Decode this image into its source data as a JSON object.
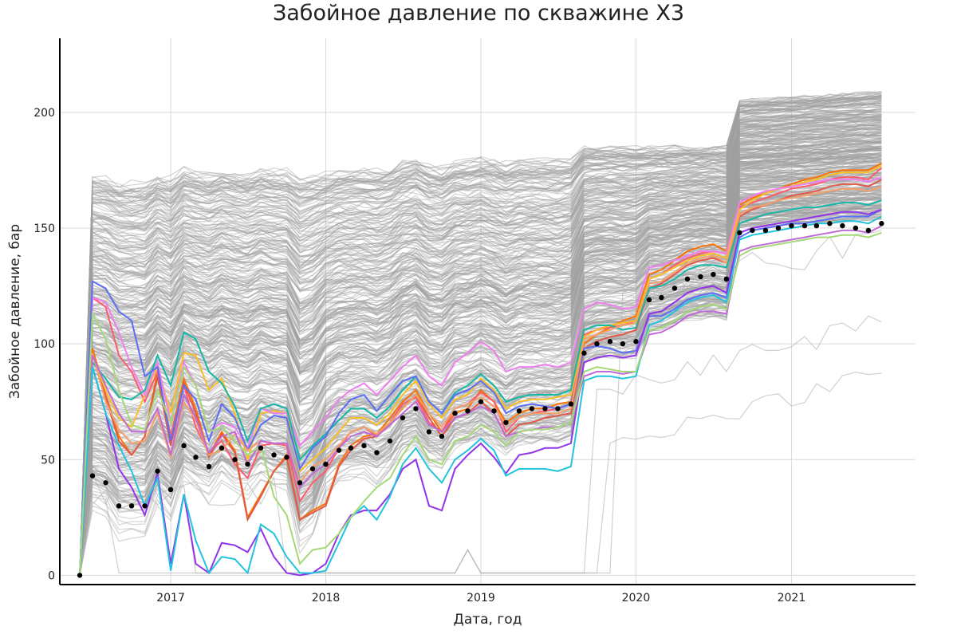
{
  "chart_data": {
    "type": "line",
    "title": "Забойное давление по скважине X3",
    "xlabel": "Дата, год",
    "ylabel": "Забойное давление, бар",
    "x_type": "date",
    "xlim": [
      "2016-04-15",
      "2021-10-20"
    ],
    "ylim": [
      -4,
      232
    ],
    "x_ticks": [
      "2017-01-01",
      "2018-01-01",
      "2019-01-01",
      "2020-01-01",
      "2021-01-01"
    ],
    "x_tick_labels": [
      "2017",
      "2018",
      "2019",
      "2020",
      "2021"
    ],
    "y_ticks": [
      0,
      50,
      100,
      150,
      200
    ],
    "grid": true,
    "legend": "none",
    "dates": [
      "2016-06-01",
      "2016-07-01",
      "2016-08-01",
      "2016-09-01",
      "2016-10-01",
      "2016-11-01",
      "2016-12-01",
      "2017-01-01",
      "2017-02-01",
      "2017-03-01",
      "2017-04-01",
      "2017-05-01",
      "2017-06-01",
      "2017-07-01",
      "2017-08-01",
      "2017-09-01",
      "2017-10-01",
      "2017-11-01",
      "2017-12-01",
      "2018-01-01",
      "2018-02-01",
      "2018-03-01",
      "2018-04-01",
      "2018-05-01",
      "2018-06-01",
      "2018-07-01",
      "2018-08-01",
      "2018-09-01",
      "2018-10-01",
      "2018-11-01",
      "2018-12-01",
      "2019-01-01",
      "2019-02-01",
      "2019-03-01",
      "2019-04-01",
      "2019-05-01",
      "2019-06-01",
      "2019-07-01",
      "2019-08-01",
      "2019-09-01",
      "2019-10-01",
      "2019-11-01",
      "2019-12-01",
      "2020-01-01",
      "2020-02-01",
      "2020-03-01",
      "2020-04-01",
      "2020-05-01",
      "2020-06-01",
      "2020-07-01",
      "2020-08-01",
      "2020-09-01",
      "2020-10-01",
      "2020-11-01",
      "2020-12-01",
      "2021-01-01",
      "2021-02-01",
      "2021-03-01",
      "2021-04-01",
      "2021-05-01",
      "2021-06-01",
      "2021-07-01",
      "2021-08-01"
    ],
    "observed": {
      "style": "black dots",
      "color": "#000000",
      "dates": [
        "2016-06-01",
        "2016-07-01",
        "2016-08-01",
        "2016-09-01",
        "2016-10-01",
        "2016-11-01",
        "2016-12-01",
        "2017-01-01",
        "2017-02-01",
        "2017-03-01",
        "2017-04-01",
        "2017-05-01",
        "2017-06-01",
        "2017-07-01",
        "2017-08-01",
        "2017-09-01",
        "2017-10-01",
        "2017-11-01",
        "2017-12-01",
        "2018-01-01",
        "2018-02-01",
        "2018-03-01",
        "2018-04-01",
        "2018-05-01",
        "2018-06-01",
        "2018-07-01",
        "2018-08-01",
        "2018-09-01",
        "2018-10-01",
        "2018-11-01",
        "2018-12-01",
        "2019-01-01",
        "2019-02-01",
        "2019-03-01",
        "2019-04-01",
        "2019-05-01",
        "2019-06-01",
        "2019-07-01",
        "2019-08-01",
        "2019-09-01",
        "2019-10-01",
        "2019-11-01",
        "2019-12-01",
        "2020-01-01",
        "2020-02-01",
        "2020-03-01",
        "2020-04-01",
        "2020-05-01",
        "2020-06-01",
        "2020-07-01",
        "2020-08-01",
        "2020-09-01",
        "2020-10-01",
        "2020-11-01",
        "2020-12-01",
        "2021-01-01",
        "2021-02-01",
        "2021-03-01",
        "2021-04-01",
        "2021-05-01",
        "2021-06-01",
        "2021-07-01",
        "2021-08-01"
      ],
      "values": [
        0,
        43,
        40,
        30,
        30,
        30,
        45,
        37,
        56,
        51,
        47,
        55,
        50,
        48,
        55,
        52,
        51,
        40,
        46,
        48,
        54,
        55,
        56,
        53,
        58,
        68,
        72,
        62,
        60,
        70,
        71,
        75,
        71,
        66,
        71,
        72,
        72,
        72,
        74,
        96,
        100,
        101,
        100,
        101,
        119,
        120,
        124,
        128,
        129,
        130,
        128,
        148,
        149,
        149,
        150,
        151,
        151,
        151,
        152,
        151,
        150,
        149,
        152
      ]
    },
    "highlight_series": [
      {
        "color": "#f97306",
        "values": [
          0,
          98,
          78,
          60,
          52,
          60,
          88,
          60,
          85,
          72,
          52,
          62,
          54,
          25,
          35,
          45,
          52,
          24,
          28,
          31,
          48,
          56,
          60,
          61,
          68,
          75,
          80,
          70,
          62,
          70,
          72,
          80,
          75,
          66,
          70,
          72,
          72,
          74,
          75,
          100,
          104,
          107,
          110,
          112,
          130,
          132,
          136,
          140,
          142,
          143,
          140,
          160,
          163,
          165,
          167,
          169,
          171,
          172,
          174,
          175,
          175,
          175,
          178
        ]
      },
      {
        "color": "#ff5b6e",
        "values": [
          0,
          120,
          116,
          95,
          88,
          75,
          88,
          60,
          82,
          64,
          53,
          58,
          48,
          42,
          56,
          57,
          56,
          32,
          40,
          45,
          55,
          62,
          64,
          60,
          66,
          74,
          77,
          66,
          62,
          72,
          74,
          79,
          75,
          62,
          68,
          70,
          71,
          72,
          74,
          104,
          106,
          107,
          108,
          110,
          128,
          130,
          134,
          137,
          139,
          140,
          139,
          159,
          161,
          163,
          165,
          167,
          168,
          169,
          171,
          172,
          172,
          171,
          176
        ]
      },
      {
        "color": "#e05a4a",
        "values": [
          0,
          96,
          77,
          58,
          52,
          60,
          86,
          56,
          83,
          70,
          51,
          61,
          53,
          24,
          34,
          45,
          51,
          24,
          27,
          30,
          47,
          54,
          59,
          60,
          66,
          72,
          78,
          68,
          60,
          68,
          70,
          75,
          70,
          60,
          65,
          66,
          68,
          69,
          70,
          98,
          101,
          103,
          104,
          106,
          124,
          126,
          130,
          134,
          136,
          137,
          135,
          155,
          158,
          160,
          162,
          164,
          165,
          166,
          168,
          169,
          169,
          168,
          171
        ]
      },
      {
        "color": "#fbbf24",
        "values": [
          0,
          95,
          80,
          68,
          64,
          78,
          90,
          70,
          96,
          95,
          80,
          85,
          70,
          50,
          70,
          71,
          70,
          45,
          50,
          55,
          62,
          68,
          68,
          65,
          70,
          78,
          84,
          74,
          68,
          76,
          78,
          85,
          80,
          72,
          75,
          76,
          76,
          77,
          78,
          103,
          106,
          108,
          109,
          110,
          128,
          130,
          133,
          136,
          138,
          139,
          137,
          158,
          162,
          165,
          167,
          168,
          170,
          171,
          173,
          174,
          174,
          174,
          177
        ]
      },
      {
        "color": "#f07ff0",
        "values": [
          0,
          120,
          118,
          105,
          90,
          78,
          92,
          66,
          92,
          82,
          62,
          66,
          64,
          55,
          72,
          70,
          70,
          56,
          62,
          68,
          76,
          80,
          83,
          78,
          84,
          90,
          95,
          86,
          82,
          92,
          96,
          101,
          97,
          88,
          90,
          90,
          91,
          90,
          92,
          115,
          118,
          117,
          115,
          116,
          133,
          134,
          136,
          138,
          140,
          140,
          139,
          161,
          164,
          166,
          167,
          168,
          169,
          170,
          171,
          171,
          171,
          170,
          172
        ]
      },
      {
        "color": "#14b8a6",
        "values": [
          0,
          92,
          85,
          77,
          76,
          80,
          95,
          82,
          105,
          102,
          88,
          83,
          73,
          58,
          72,
          74,
          72,
          50,
          56,
          61,
          67,
          72,
          72,
          68,
          73,
          80,
          86,
          75,
          70,
          79,
          82,
          87,
          82,
          75,
          77,
          78,
          78,
          78,
          80,
          106,
          108,
          108,
          106,
          107,
          124,
          125,
          128,
          132,
          134,
          134,
          133,
          152,
          154,
          156,
          157,
          158,
          159,
          159,
          160,
          161,
          161,
          160,
          162
        ]
      },
      {
        "color": "#5b6ef5",
        "values": [
          0,
          127,
          124,
          114,
          110,
          86,
          90,
          58,
          82,
          76,
          58,
          74,
          68,
          54,
          65,
          69,
          68,
          46,
          55,
          60,
          70,
          76,
          78,
          71,
          78,
          84,
          86,
          75,
          70,
          78,
          80,
          84,
          79,
          70,
          73,
          74,
          73,
          72,
          74,
          98,
          99,
          98,
          96,
          97,
          112,
          112,
          115,
          119,
          121,
          122,
          120,
          146,
          149,
          150,
          151,
          152,
          152,
          153,
          154,
          155,
          155,
          155,
          158
        ]
      },
      {
        "color": "#f4a06a",
        "values": [
          0,
          96,
          75,
          63,
          57,
          58,
          70,
          51,
          75,
          67,
          52,
          54,
          61,
          54,
          58,
          57,
          57,
          40,
          47,
          50,
          56,
          62,
          64,
          61,
          66,
          72,
          78,
          70,
          64,
          72,
          74,
          77,
          73,
          65,
          68,
          70,
          70,
          70,
          72,
          102,
          104,
          106,
          108,
          109,
          126,
          127,
          131,
          135,
          137,
          138,
          135,
          156,
          159,
          160,
          162,
          163,
          164,
          165,
          166,
          167,
          167,
          166,
          168
        ]
      },
      {
        "color": "#9333ea",
        "values": [
          0,
          90,
          70,
          46,
          38,
          26,
          44,
          5,
          35,
          5,
          1,
          14,
          13,
          10,
          20,
          8,
          1,
          0,
          1,
          5,
          18,
          26,
          28,
          28,
          35,
          46,
          50,
          30,
          28,
          46,
          52,
          57,
          51,
          44,
          52,
          53,
          55,
          55,
          57,
          92,
          94,
          95,
          94,
          95,
          113,
          114,
          118,
          122,
          124,
          125,
          122,
          148,
          150,
          151,
          152,
          153,
          154,
          155,
          156,
          157,
          157,
          156,
          158
        ]
      },
      {
        "color": "#c06ad8",
        "values": [
          0,
          95,
          82,
          70,
          62,
          62,
          72,
          52,
          78,
          68,
          53,
          60,
          62,
          48,
          58,
          57,
          57,
          38,
          44,
          48,
          55,
          60,
          62,
          60,
          65,
          70,
          75,
          65,
          62,
          68,
          70,
          73,
          70,
          60,
          62,
          63,
          64,
          64,
          66,
          86,
          88,
          88,
          87,
          88,
          104,
          105,
          108,
          112,
          114,
          114,
          113,
          140,
          142,
          143,
          144,
          145,
          146,
          147,
          148,
          149,
          149,
          148,
          151
        ]
      },
      {
        "color": "#22c3dd",
        "values": [
          0,
          90,
          70,
          56,
          45,
          30,
          42,
          2,
          35,
          15,
          1,
          8,
          7,
          1,
          22,
          18,
          8,
          1,
          1,
          2,
          14,
          25,
          30,
          24,
          34,
          48,
          55,
          46,
          40,
          50,
          54,
          59,
          54,
          43,
          46,
          46,
          46,
          45,
          47,
          84,
          86,
          86,
          85,
          86,
          108,
          110,
          114,
          118,
          120,
          121,
          118,
          145,
          147,
          148,
          149,
          150,
          151,
          152,
          152,
          153,
          153,
          152,
          155
        ]
      },
      {
        "color": "#a3d977",
        "values": [
          0,
          113,
          102,
          80,
          65,
          63,
          80,
          66,
          90,
          82,
          62,
          64,
          58,
          52,
          56,
          34,
          26,
          5,
          11,
          12,
          18,
          25,
          32,
          38,
          42,
          52,
          60,
          50,
          48,
          58,
          60,
          65,
          62,
          56,
          62,
          63,
          63,
          64,
          66,
          88,
          90,
          89,
          88,
          88,
          106,
          107,
          110,
          114,
          116,
          117,
          115,
          138,
          141,
          142,
          143,
          144,
          145,
          146,
          146,
          147,
          147,
          146,
          148
        ]
      }
    ],
    "background_series": {
      "color": "#a0a0a0",
      "description_count": 360
    }
  }
}
